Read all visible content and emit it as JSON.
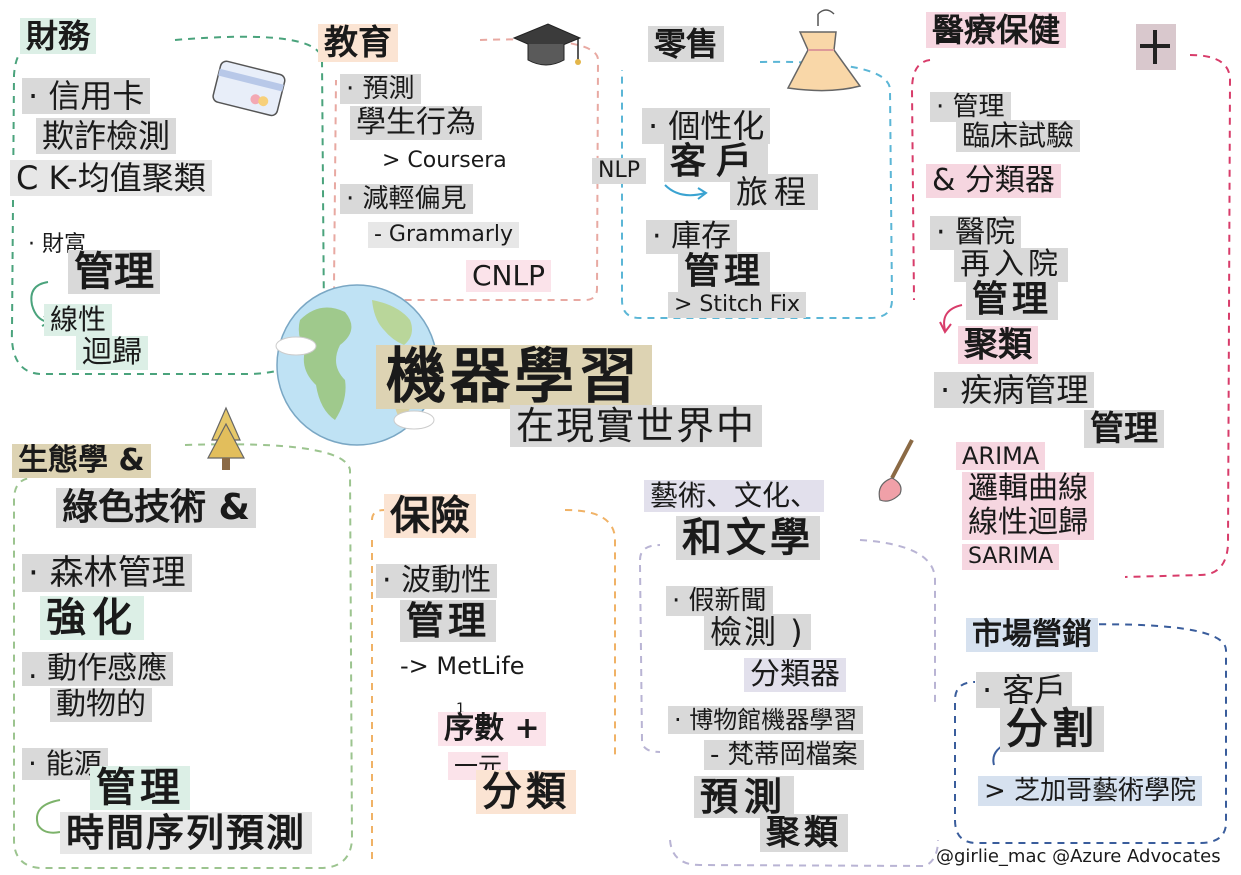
{
  "title": {
    "main": "機器學習",
    "sub": "在現實世界中"
  },
  "credit": "@girlie_mac @Azure Advocates",
  "finance": {
    "heading": "財務",
    "item1": "· 信用卡",
    "item1b": "欺詐檢測",
    "item1c": "C K-均值聚類",
    "item2": "· 財富",
    "item2b": "管理",
    "item2c": "線性",
    "item2d": "迴歸"
  },
  "education": {
    "heading": "教育",
    "item1": "· 預測",
    "item1b": "學生行為",
    "item1c": "> Coursera",
    "item2": "· 減輕偏見",
    "item2b": "- Grammarly",
    "item2c": "CNLP"
  },
  "retail": {
    "heading": "零售",
    "item1": "· 個性化",
    "item1b": "客戶",
    "item1c": "旅程",
    "nlp": "NLP",
    "item2": "· 庫存",
    "item2b": "管理",
    "item2c": "> Stitch Fix"
  },
  "healthcare": {
    "heading": "醫療保健",
    "item1": "· 管理",
    "item1b": "臨床試驗",
    "item1c": "& 分類器",
    "item2": "· 醫院",
    "item2b": "再入院",
    "item2c": "管理",
    "item2d": "聚類",
    "item3": "· 疾病管理",
    "item3b": "管理",
    "item3c": "ARIMA",
    "item3d": "邏輯曲線",
    "item3e": "線性迴歸",
    "item3f": "SARIMA"
  },
  "ecology": {
    "heading": "生態學 &",
    "heading2": "綠色技術 &",
    "item1": "· 森林管理",
    "item1b": "強化",
    "item2": ". 動作感應",
    "item2b": "動物的",
    "item3": "· 能源",
    "item3b": "管理",
    "item3c": "時間序列預測"
  },
  "insurance": {
    "heading": "保險",
    "item1": "· 波動性",
    "item1b": "管理",
    "item1c": "-> MetLife",
    "sup": "1",
    "item2": "序數 +",
    "item2b": "一元",
    "item2c": "分類"
  },
  "arts": {
    "heading": "藝術、文化、",
    "heading2": "和文學",
    "item1": "· 假新聞",
    "item1b": "檢測 )",
    "item1c": "分類器",
    "item2": "· 博物館機器學習",
    "item2b": "- 梵蒂岡檔案",
    "item2c": "預測",
    "item2d": "聚類"
  },
  "marketing": {
    "heading": "市場營銷",
    "item1": "· 客戶",
    "item1b": "分割",
    "item1c": "> 芝加哥藝術學院"
  },
  "icons": {
    "card": "credit-card-icon",
    "cap": "graduation-cap-icon",
    "dress": "dress-icon",
    "plus": "plus-icon",
    "globe": "globe-icon",
    "tree": "tree-icon",
    "brush": "paintbrush-icon"
  },
  "colors": {
    "finance_border": "#4aa37c",
    "education_border": "#e8a9a2",
    "retail_border": "#5bb6d6",
    "health_border": "#d83c6a",
    "ecology_border": "#9cc48f",
    "insurance_border": "#f0b266",
    "arts_border": "#b9b4d4",
    "marketing_border": "#3a5d9c"
  }
}
